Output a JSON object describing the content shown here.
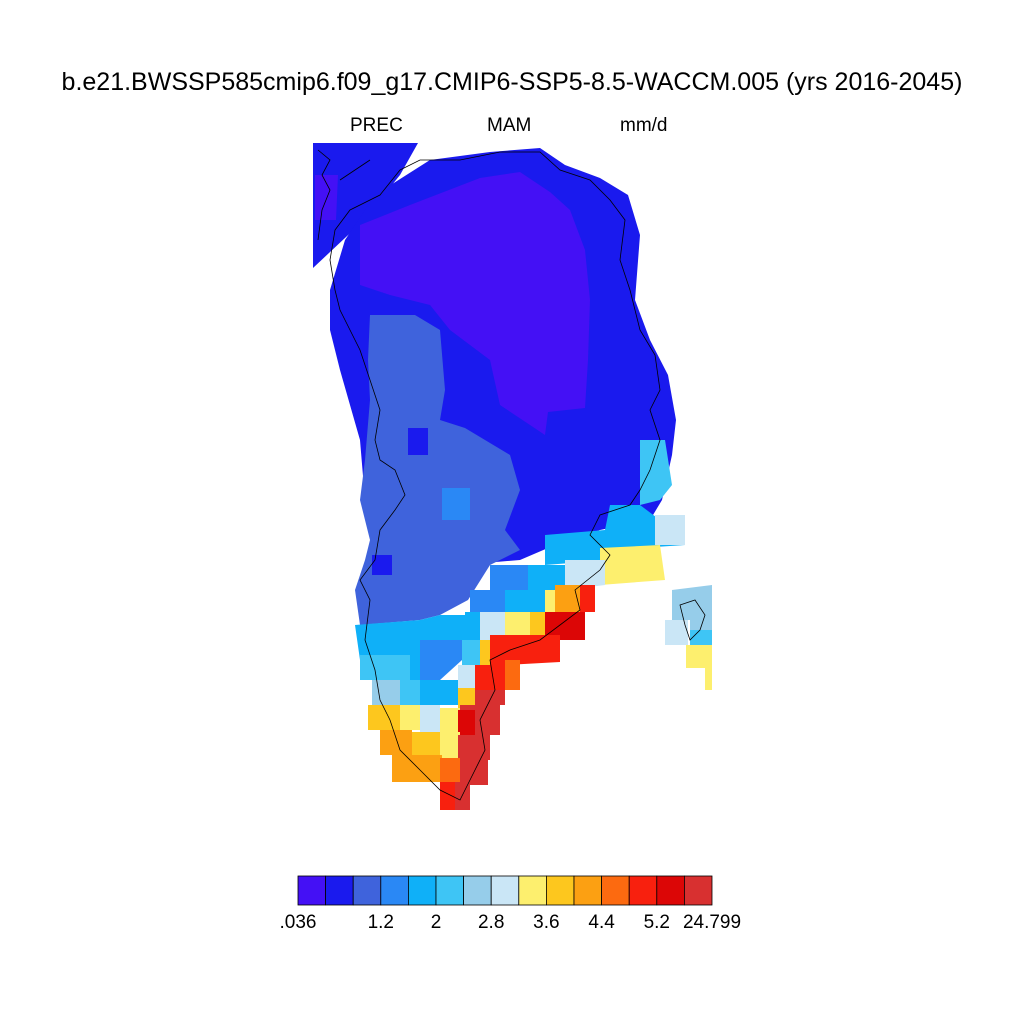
{
  "header": {
    "title": "b.e21.BWSSP585cmip6.f09_g17.CMIP6-SSP5-8.5-WACCM.005 (yrs 2016-2045)",
    "left_string": "PREC",
    "center_string": "MAM",
    "right_string": "mm/d"
  },
  "colorbar": {
    "colors": [
      "#4410f5",
      "#1a1aee",
      "#3f63dc",
      "#2a88f5",
      "#0fb0f8",
      "#3ec5f5",
      "#96cdea",
      "#cae6f6",
      "#fdef6e",
      "#fdc71e",
      "#fca012",
      "#fc6a10",
      "#f8200e",
      "#dc0606",
      "#d83030"
    ],
    "labels": [
      {
        "text": ".036",
        "boundary": 0
      },
      {
        "text": "1.2",
        "boundary": 3
      },
      {
        "text": "2",
        "boundary": 5
      },
      {
        "text": "2.8",
        "boundary": 7
      },
      {
        "text": "3.6",
        "boundary": 9
      },
      {
        "text": "4.4",
        "boundary": 11
      },
      {
        "text": "5.2",
        "boundary": 13
      },
      {
        "text": "24.799",
        "boundary": 15
      }
    ]
  },
  "map": {
    "region": "Greenland",
    "variable": "PREC",
    "season": "MAM",
    "units": "mm/d"
  }
}
